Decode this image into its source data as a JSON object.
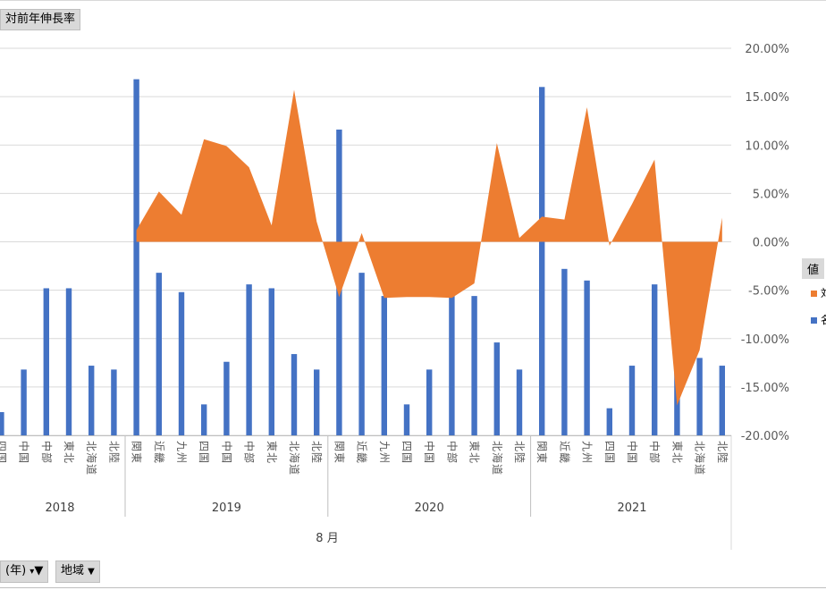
{
  "field_buttons": {
    "data_field": "対前年伸長率",
    "year_field": "(年)",
    "region_field": "地域"
  },
  "legend": {
    "title": "値",
    "items": [
      {
        "label": "対",
        "color": "#ed7d31"
      },
      {
        "label": "名",
        "color": "#4472c4"
      }
    ]
  },
  "colors": {
    "area": "#ed7d31",
    "bar": "#4472c4",
    "grid": "#d9d9d9",
    "axis_text": "#595959"
  },
  "chart_data": {
    "type": "bar",
    "title": "対前年伸長率",
    "xlabel": "8 月",
    "month_label": "8 月",
    "right_axis": {
      "ylim": [
        -0.2,
        0.2
      ],
      "ticks": [
        0.2,
        0.15,
        0.1,
        0.05,
        0.0,
        -0.05,
        -0.1,
        -0.15,
        -0.2
      ],
      "tick_labels": [
        "20.00%",
        "15.00%",
        "10.00%",
        "5.00%",
        "0.00%",
        "-5.00%",
        "-10.00%",
        "-15.00%",
        "-20.00%"
      ]
    },
    "left_axis": {
      "ylim": [
        0,
        100
      ]
    },
    "years": [
      {
        "label": "2018",
        "regions": [
          "四国",
          "中国",
          "中部",
          "東北",
          "北海道",
          "北陸"
        ]
      },
      {
        "label": "2019",
        "regions": [
          "関東",
          "近畿",
          "九州",
          "四国",
          "中国",
          "中部",
          "東北",
          "北海道",
          "北陸"
        ]
      },
      {
        "label": "2020",
        "regions": [
          "関東",
          "近畿",
          "九州",
          "四国",
          "中国",
          "中部",
          "東北",
          "北海道",
          "北陸"
        ]
      },
      {
        "label": "2021",
        "regions": [
          "関東",
          "近畿",
          "九州",
          "四国",
          "中国",
          "中部",
          "東北",
          "北海道",
          "北陸"
        ]
      }
    ],
    "series": [
      {
        "name": "対前年伸長率",
        "kind": "area",
        "axis": "right",
        "values": [
          null,
          null,
          null,
          null,
          null,
          null,
          0.012,
          0.052,
          0.028,
          0.106,
          0.099,
          0.077,
          0.017,
          0.157,
          0.021,
          -0.057,
          0.009,
          -0.058,
          -0.057,
          -0.057,
          -0.058,
          -0.043,
          0.102,
          0.004,
          0.026,
          0.023,
          0.139,
          -0.004,
          0.039,
          0.085,
          -0.169,
          -0.112,
          0.025
        ]
      },
      {
        "name": "名",
        "kind": "bar",
        "axis": "left",
        "values": [
          6,
          17,
          38,
          38,
          18,
          17,
          92,
          42,
          37,
          8,
          19,
          39,
          38,
          21,
          17,
          79,
          42,
          36,
          8,
          17,
          37,
          36,
          24,
          17,
          90,
          43,
          40,
          7,
          18,
          39,
          30,
          20,
          18
        ]
      }
    ]
  }
}
